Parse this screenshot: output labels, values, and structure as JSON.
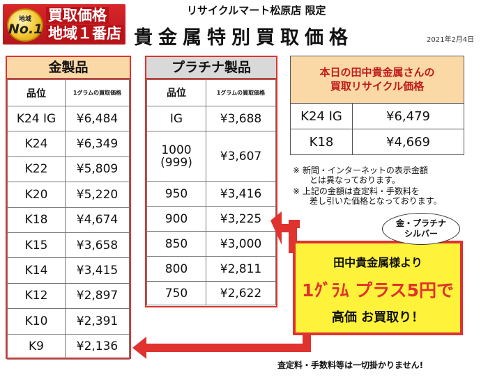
{
  "badge": {
    "region": "地域",
    "no1": "No.1",
    "line1": "買取価格",
    "line2": "地域１番店"
  },
  "header": {
    "store": "リサイクルマート松原店 限定",
    "title": "貴金属特別買取価格",
    "date": "2021年2月4日"
  },
  "gold": {
    "heading": "金製品",
    "col_grade": "品位",
    "col_price": "1グラムの買取価格",
    "rows": [
      {
        "grade": "K24 IG",
        "price": "¥6,484"
      },
      {
        "grade": "K24",
        "price": "¥6,349"
      },
      {
        "grade": "K22",
        "price": "¥5,809"
      },
      {
        "grade": "K20",
        "price": "¥5,220"
      },
      {
        "grade": "K18",
        "price": "¥4,674"
      },
      {
        "grade": "K15",
        "price": "¥3,658"
      },
      {
        "grade": "K14",
        "price": "¥3,415"
      },
      {
        "grade": "K12",
        "price": "¥2,897"
      },
      {
        "grade": "K10",
        "price": "¥2,391"
      },
      {
        "grade": "K9",
        "price": "¥2,136"
      }
    ]
  },
  "platinum": {
    "heading": "プラチナ製品",
    "col_grade": "品位",
    "col_price": "1グラムの買取価格",
    "rows": [
      {
        "grade": "IG",
        "price": "¥3,688"
      },
      {
        "grade": "1000\n(999)",
        "price": "¥3,607"
      },
      {
        "grade": "950",
        "price": "¥3,416"
      },
      {
        "grade": "900",
        "price": "¥3,225"
      },
      {
        "grade": "850",
        "price": "¥3,000"
      },
      {
        "grade": "800",
        "price": "¥2,811"
      },
      {
        "grade": "750",
        "price": "¥2,622"
      }
    ]
  },
  "tanaka": {
    "heading_line1": "本日の田中貴金属さんの",
    "heading_line2": "買取リサイクル価格",
    "rows": [
      {
        "grade": "K24 IG",
        "price": "¥6,479"
      },
      {
        "grade": "K18",
        "price": "¥4,669"
      }
    ]
  },
  "notes": {
    "note1_line1": "※ 新聞・インターネットの表示金額",
    "note1_line2": "とは異なっております。",
    "note2_line1": "※ 上記の金額は査定料・手数料を",
    "note2_line2": "差し引いた価格となっております。"
  },
  "bubble": {
    "line1": "金・プラチナ",
    "line2": "シルバー"
  },
  "callout": {
    "line1": "田中貴金属様より",
    "line2": "1ｸﾞﾗﾑ プラス5円で",
    "line3": "高価 お買取り！"
  },
  "footer": "査定料・手数料等は一切掛かりません!",
  "colors": {
    "accent_red": "#e0322e",
    "gold_header": "#fbd9a6",
    "platinum_header": "#d9d9d9",
    "callout_yellow": "#fff23a"
  }
}
